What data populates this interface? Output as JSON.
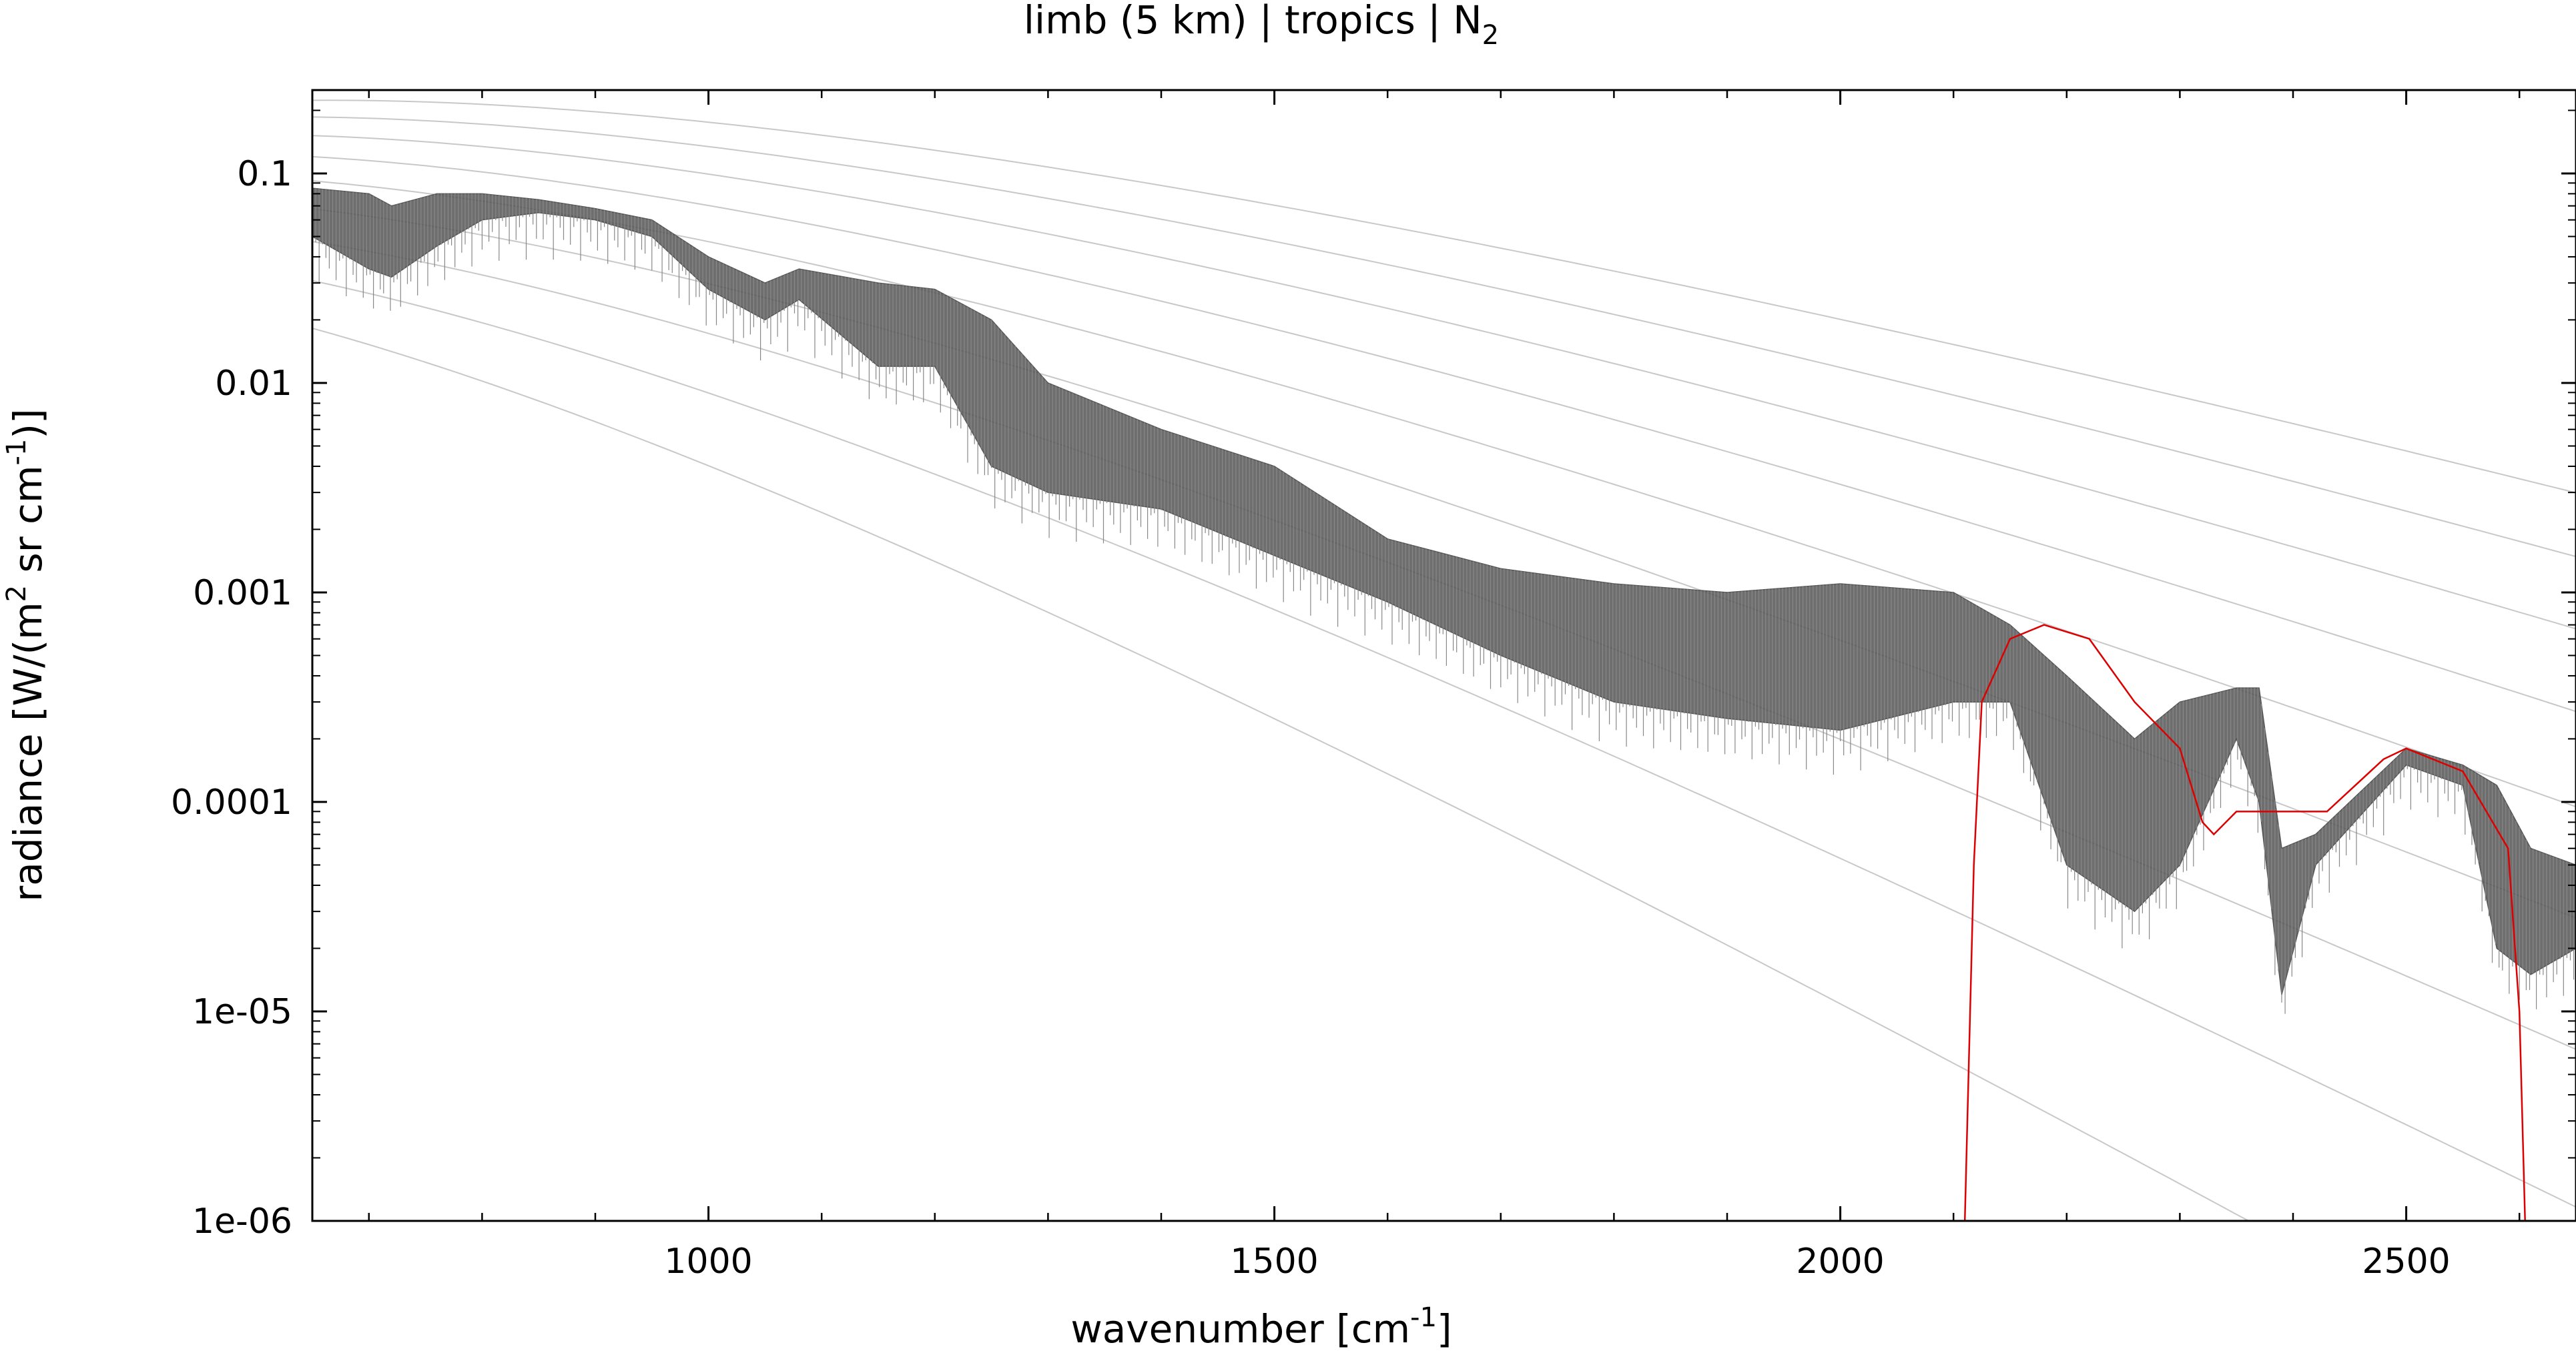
{
  "chart_data": {
    "type": "line",
    "title_parts": {
      "base": "limb (5 km) | tropics | N",
      "sub": "2"
    },
    "xlabel_parts": {
      "base": "wavenumber [cm",
      "sup": "-1",
      "end": "]"
    },
    "ylabel_parts": {
      "a": "radiance [W/(m",
      "sup1": "2",
      "b": " sr cm",
      "sup2": "-1",
      "c": ")]"
    },
    "x_range": [
      650,
      2650
    ],
    "y_range": [
      1e-06,
      0.25
    ],
    "y_scale": "log",
    "x_ticks": [
      {
        "v": 1000,
        "label": "1000"
      },
      {
        "v": 1500,
        "label": "1500"
      },
      {
        "v": 2000,
        "label": "2000"
      },
      {
        "v": 2500,
        "label": "2500"
      }
    ],
    "y_ticks": [
      {
        "v": 0.1,
        "label": "0.1"
      },
      {
        "v": 0.01,
        "label": "0.01"
      },
      {
        "v": 0.001,
        "label": "0.001"
      },
      {
        "v": 0.0001,
        "label": "0.0001"
      },
      {
        "v": 1e-05,
        "label": "1e-05"
      },
      {
        "v": 1e-06,
        "label": "1e-06"
      }
    ],
    "grid": false,
    "legend": "none",
    "reference_curve_temperatures_K": [
      180,
      200,
      220,
      240,
      260,
      280,
      300,
      320,
      340
    ],
    "series": [
      {
        "color": "#555555",
        "envelope": [
          {
            "x": 650,
            "lo": 0.05,
            "hi": 0.085
          },
          {
            "x": 700,
            "lo": 0.035,
            "hi": 0.08
          },
          {
            "x": 720,
            "lo": 0.032,
            "hi": 0.07
          },
          {
            "x": 760,
            "lo": 0.045,
            "hi": 0.08
          },
          {
            "x": 800,
            "lo": 0.06,
            "hi": 0.08
          },
          {
            "x": 850,
            "lo": 0.065,
            "hi": 0.075
          },
          {
            "x": 900,
            "lo": 0.06,
            "hi": 0.068
          },
          {
            "x": 950,
            "lo": 0.05,
            "hi": 0.06
          },
          {
            "x": 1000,
            "lo": 0.028,
            "hi": 0.04
          },
          {
            "x": 1050,
            "lo": 0.02,
            "hi": 0.03
          },
          {
            "x": 1080,
            "lo": 0.025,
            "hi": 0.035
          },
          {
            "x": 1150,
            "lo": 0.012,
            "hi": 0.03
          },
          {
            "x": 1200,
            "lo": 0.012,
            "hi": 0.028
          },
          {
            "x": 1250,
            "lo": 0.004,
            "hi": 0.02
          },
          {
            "x": 1300,
            "lo": 0.003,
            "hi": 0.01
          },
          {
            "x": 1400,
            "lo": 0.0025,
            "hi": 0.006
          },
          {
            "x": 1500,
            "lo": 0.0015,
            "hi": 0.004
          },
          {
            "x": 1600,
            "lo": 0.0009,
            "hi": 0.0018
          },
          {
            "x": 1700,
            "lo": 0.0005,
            "hi": 0.0013
          },
          {
            "x": 1800,
            "lo": 0.0003,
            "hi": 0.0011
          },
          {
            "x": 1900,
            "lo": 0.00025,
            "hi": 0.001
          },
          {
            "x": 2000,
            "lo": 0.00022,
            "hi": 0.0011
          },
          {
            "x": 2100,
            "lo": 0.0003,
            "hi": 0.001
          },
          {
            "x": 2150,
            "lo": 0.0003,
            "hi": 0.0007
          },
          {
            "x": 2200,
            "lo": 5e-05,
            "hi": 0.0004
          },
          {
            "x": 2260,
            "lo": 3e-05,
            "hi": 0.0002
          },
          {
            "x": 2300,
            "lo": 5e-05,
            "hi": 0.0003
          },
          {
            "x": 2350,
            "lo": 0.0002,
            "hi": 0.00035
          },
          {
            "x": 2370,
            "lo": 0.0001,
            "hi": 0.00035
          },
          {
            "x": 2390,
            "lo": 1.2e-05,
            "hi": 6e-05
          },
          {
            "x": 2420,
            "lo": 5e-05,
            "hi": 7e-05
          },
          {
            "x": 2500,
            "lo": 0.00015,
            "hi": 0.00018
          },
          {
            "x": 2550,
            "lo": 0.00012,
            "hi": 0.00015
          },
          {
            "x": 2580,
            "lo": 2e-05,
            "hi": 0.00012
          },
          {
            "x": 2610,
            "lo": 1.5e-05,
            "hi": 6e-05
          },
          {
            "x": 2650,
            "lo": 2e-05,
            "hi": 5e-05
          }
        ]
      },
      {
        "color": "#dd0000",
        "points": [
          {
            "x": 2100,
            "y": 1e-06
          },
          {
            "x": 2110,
            "y": 1e-06
          },
          {
            "x": 2118,
            "y": 5e-05
          },
          {
            "x": 2125,
            "y": 0.0003
          },
          {
            "x": 2150,
            "y": 0.0006
          },
          {
            "x": 2180,
            "y": 0.0007
          },
          {
            "x": 2220,
            "y": 0.0006
          },
          {
            "x": 2260,
            "y": 0.0003
          },
          {
            "x": 2300,
            "y": 0.00018
          },
          {
            "x": 2320,
            "y": 8e-05
          },
          {
            "x": 2330,
            "y": 7e-05
          },
          {
            "x": 2350,
            "y": 9e-05
          },
          {
            "x": 2400,
            "y": 9e-05
          },
          {
            "x": 2430,
            "y": 9e-05
          },
          {
            "x": 2480,
            "y": 0.00016
          },
          {
            "x": 2500,
            "y": 0.00018
          },
          {
            "x": 2550,
            "y": 0.00014
          },
          {
            "x": 2590,
            "y": 6e-05
          },
          {
            "x": 2600,
            "y": 1e-05
          },
          {
            "x": 2605,
            "y": 1e-06
          }
        ]
      }
    ]
  }
}
